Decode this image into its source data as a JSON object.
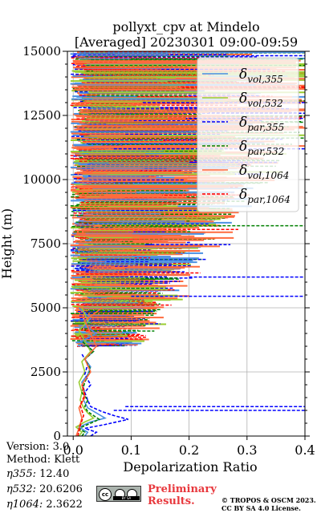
{
  "title_line1": "pollyxt_cpv at Mindelo",
  "title_line2": "[Averaged] 20230301 09:00-09:59",
  "info": {
    "version": "Version: 3.0",
    "method": "Method: Klett",
    "eta355_label": "η355:",
    "eta355_value": "12.40",
    "eta532_label": "η532:",
    "eta532_value": "20.6206",
    "eta1064_label": "η1064:",
    "eta1064_value": "2.3622"
  },
  "preliminary": [
    "Preliminary",
    "Results."
  ],
  "copyright": [
    "© TROPOS & OSCM 2023.",
    "CC BY SA 4.0 License."
  ],
  "license_badge": "BY SA",
  "colors": {
    "vol355": "#4a90e2",
    "vol532": "#9acd32",
    "par355": "#0000ff",
    "par532": "#008000",
    "vol1064": "#ff6b3d",
    "par1064": "#ff0000",
    "preliminary": "#e8383d"
  },
  "chart_data": {
    "type": "line",
    "title": "pollyxt_cpv at Mindelo [Averaged] 20230301 09:00-09:59",
    "xlabel": "Depolarization Ratio",
    "ylabel": "Height (m)",
    "xlim": [
      -0.01,
      0.4
    ],
    "ylim": [
      0,
      15000
    ],
    "xticks": [
      0.0,
      0.1,
      0.2,
      0.3,
      0.4
    ],
    "xtick_labels": [
      "0.0",
      "0.1",
      "0.2",
      "0.3",
      "0.4"
    ],
    "yticks": [
      0,
      2500,
      5000,
      7500,
      10000,
      12500,
      15000
    ],
    "ytick_labels": [
      "0",
      "2500",
      "5000",
      "7500",
      "10000",
      "12500",
      "15000"
    ],
    "grid": true,
    "legend_position": "top-right",
    "legend": [
      {
        "key": "vol355",
        "label": "δ",
        "sub": "vol,355",
        "dash": false
      },
      {
        "key": "vol532",
        "label": "δ",
        "sub": "vol,532",
        "dash": false
      },
      {
        "key": "par355",
        "label": "δ",
        "sub": "par,355",
        "dash": true
      },
      {
        "key": "par532",
        "label": "δ",
        "sub": "par,532",
        "dash": true
      },
      {
        "key": "vol1064",
        "label": "δ",
        "sub": "vol,1064",
        "dash": false
      },
      {
        "key": "par1064",
        "label": "δ",
        "sub": "par,1064",
        "dash": true
      }
    ],
    "series": [
      {
        "key": "vol355",
        "points": [
          [
            0.02,
            0
          ],
          [
            0.025,
            150
          ],
          [
            0.01,
            350
          ],
          [
            0.03,
            550
          ],
          [
            0.055,
            700
          ],
          [
            0.04,
            900
          ],
          [
            0.025,
            1100
          ],
          [
            0.018,
            1400
          ],
          [
            0.02,
            1700
          ],
          [
            0.015,
            2100
          ],
          [
            0.025,
            2400
          ],
          [
            0.03,
            2700
          ],
          [
            0.02,
            3000
          ],
          [
            0.035,
            3300
          ],
          [
            0.015,
            3700
          ],
          [
            0.04,
            4000
          ],
          [
            0.02,
            4300
          ],
          [
            0.03,
            4600
          ],
          [
            0.01,
            5000
          ]
        ]
      },
      {
        "key": "vol532",
        "points": [
          [
            0.01,
            0
          ],
          [
            0.015,
            150
          ],
          [
            0.005,
            350
          ],
          [
            0.02,
            550
          ],
          [
            0.035,
            700
          ],
          [
            0.025,
            900
          ],
          [
            0.018,
            1100
          ],
          [
            0.012,
            1400
          ],
          [
            0.015,
            1700
          ],
          [
            0.01,
            2100
          ],
          [
            0.02,
            2500
          ],
          [
            0.015,
            2900
          ],
          [
            0.03,
            3300
          ],
          [
            0.02,
            3700
          ],
          [
            0.01,
            4100
          ],
          [
            0.025,
            4500
          ],
          [
            0.015,
            5000
          ]
        ]
      },
      {
        "key": "par355",
        "points": [
          [
            0.03,
            0
          ],
          [
            0.04,
            150
          ],
          [
            0.02,
            300
          ],
          [
            0.055,
            450
          ],
          [
            0.095,
            650
          ],
          [
            0.07,
            800
          ],
          [
            0.05,
            950
          ],
          [
            0.03,
            1150
          ],
          [
            0.025,
            1400
          ],
          [
            0.02,
            1700
          ],
          [
            0.03,
            2000
          ],
          [
            0.02,
            2400
          ],
          [
            0.025,
            2800
          ],
          [
            0.015,
            3200
          ]
        ]
      },
      {
        "key": "par532",
        "points": [
          [
            0.015,
            0
          ],
          [
            0.02,
            150
          ],
          [
            0.01,
            300
          ],
          [
            0.025,
            450
          ],
          [
            0.045,
            650
          ],
          [
            0.035,
            800
          ],
          [
            0.025,
            950
          ],
          [
            0.02,
            1150
          ],
          [
            0.025,
            1400
          ],
          [
            0.015,
            1700
          ],
          [
            0.02,
            2100
          ],
          [
            0.03,
            2600
          ],
          [
            0.02,
            3000
          ],
          [
            0.035,
            3300
          ],
          [
            0.015,
            3700
          ]
        ]
      },
      {
        "key": "vol1064",
        "points": [
          [
            0.005,
            0
          ],
          [
            0.01,
            300
          ],
          [
            0.015,
            700
          ],
          [
            0.01,
            1100
          ],
          [
            0.02,
            1500
          ],
          [
            0.015,
            2000
          ],
          [
            0.03,
            2500
          ],
          [
            0.02,
            3000
          ],
          [
            0.04,
            3500
          ],
          [
            0.03,
            4000
          ],
          [
            0.02,
            4500
          ],
          [
            0.05,
            5000
          ]
        ]
      },
      {
        "key": "par1064",
        "points": [
          [
            0.008,
            0
          ],
          [
            0.012,
            400
          ],
          [
            0.018,
            800
          ],
          [
            0.012,
            1200
          ],
          [
            0.02,
            1600
          ],
          [
            0.016,
            2000
          ]
        ]
      }
    ],
    "spikes": [
      {
        "key": "par355",
        "y": 1150,
        "x0": 0.09,
        "x1": 0.4
      },
      {
        "key": "par355",
        "y": 1000,
        "x0": 0.07,
        "x1": 0.4
      },
      {
        "key": "par355",
        "y": 5450,
        "x0": 0.1,
        "x1": 0.4
      },
      {
        "key": "par355",
        "y": 6200,
        "x0": 0.2,
        "x1": 0.4
      },
      {
        "key": "par532",
        "y": 8200,
        "x0": 0.05,
        "x1": 0.4
      },
      {
        "key": "par532",
        "y": 14700,
        "x0": 0.1,
        "x1": 0.4
      },
      {
        "key": "par355",
        "y": 11200,
        "x0": 0.07,
        "x1": 0.4
      },
      {
        "key": "par355",
        "y": 13000,
        "x0": 0.12,
        "x1": 0.4
      }
    ],
    "noise_segments_above_m": 3500
  }
}
